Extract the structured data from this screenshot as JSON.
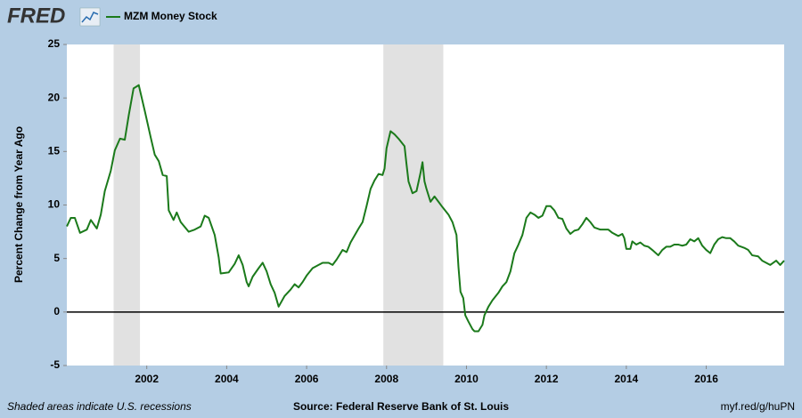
{
  "brand": "FRED",
  "chart_data": {
    "type": "line",
    "y_label": "Percent Change from Year Ago",
    "recession_note": "Shaded areas indicate U.S. recessions",
    "source": "Source: Federal Reserve Bank of St. Louis",
    "link": "myf.red/g/huPN",
    "xlim": [
      2000,
      2017.95
    ],
    "xticks": [
      2002,
      2004,
      2006,
      2008,
      2010,
      2012,
      2014,
      2016
    ],
    "ylim": [
      -5,
      25
    ],
    "yticks": [
      -5,
      0,
      5,
      10,
      15,
      20,
      25
    ],
    "grid": false,
    "recession_color": "#e1e1e1",
    "recessions": [
      [
        2001.17,
        2001.83
      ],
      [
        2007.92,
        2009.42
      ]
    ],
    "x": [
      2000.0,
      2000.1,
      2000.2,
      2000.33,
      2000.5,
      2000.6,
      2000.75,
      2000.85,
      2000.95,
      2001.1,
      2001.2,
      2001.33,
      2001.45,
      2001.55,
      2001.67,
      2001.8,
      2001.95,
      2002.1,
      2002.2,
      2002.3,
      2002.4,
      2002.5,
      2002.55,
      2002.67,
      2002.75,
      2002.85,
      2003.05,
      2003.2,
      2003.35,
      2003.45,
      2003.55,
      2003.7,
      2003.8,
      2003.85,
      2004.05,
      2004.2,
      2004.3,
      2004.4,
      2004.5,
      2004.55,
      2004.65,
      2004.8,
      2004.9,
      2005.0,
      2005.1,
      2005.2,
      2005.3,
      2005.45,
      2005.6,
      2005.7,
      2005.8,
      2005.9,
      2006.0,
      2006.15,
      2006.3,
      2006.4,
      2006.55,
      2006.65,
      2006.75,
      2006.9,
      2007.0,
      2007.1,
      2007.3,
      2007.4,
      2007.5,
      2007.6,
      2007.7,
      2007.8,
      2007.9,
      2007.95,
      2008.0,
      2008.1,
      2008.2,
      2008.3,
      2008.45,
      2008.5,
      2008.55,
      2008.65,
      2008.75,
      2008.85,
      2008.9,
      2008.95,
      2009.0,
      2009.1,
      2009.2,
      2009.3,
      2009.4,
      2009.55,
      2009.65,
      2009.75,
      2009.8,
      2009.85,
      2009.92,
      2009.97,
      2010.05,
      2010.15,
      2010.2,
      2010.3,
      2010.4,
      2010.45,
      2010.55,
      2010.65,
      2010.8,
      2010.9,
      2011.0,
      2011.1,
      2011.2,
      2011.3,
      2011.4,
      2011.5,
      2011.6,
      2011.7,
      2011.8,
      2011.9,
      2012.0,
      2012.1,
      2012.2,
      2012.3,
      2012.4,
      2012.5,
      2012.6,
      2012.7,
      2012.8,
      2012.9,
      2013.0,
      2013.1,
      2013.2,
      2013.35,
      2013.45,
      2013.55,
      2013.65,
      2013.75,
      2013.8,
      2013.9,
      2013.95,
      2014.0,
      2014.1,
      2014.15,
      2014.25,
      2014.35,
      2014.45,
      2014.55,
      2014.65,
      2014.8,
      2014.9,
      2015.0,
      2015.1,
      2015.2,
      2015.3,
      2015.4,
      2015.5,
      2015.6,
      2015.7,
      2015.8,
      2015.9,
      2016.0,
      2016.1,
      2016.2,
      2016.3,
      2016.4,
      2016.5,
      2016.6,
      2016.7,
      2016.8,
      2016.95,
      2017.05,
      2017.15,
      2017.3,
      2017.4,
      2017.5,
      2017.6,
      2017.75,
      2017.85,
      2017.95
    ],
    "series": [
      {
        "name": "MZM Money Stock",
        "color": "#1b7a1b",
        "values": [
          8.0,
          8.8,
          8.8,
          7.4,
          7.7,
          8.6,
          7.8,
          9.1,
          11.3,
          13.2,
          15.1,
          16.2,
          16.1,
          18.4,
          20.9,
          21.2,
          18.8,
          16.3,
          14.7,
          14.1,
          12.8,
          12.7,
          9.5,
          8.6,
          9.3,
          8.4,
          7.5,
          7.7,
          8.0,
          9.0,
          8.8,
          7.2,
          5.1,
          3.6,
          3.7,
          4.5,
          5.3,
          4.4,
          2.8,
          2.4,
          3.3,
          4.1,
          4.6,
          3.8,
          2.6,
          1.8,
          0.5,
          1.5,
          2.1,
          2.6,
          2.3,
          2.8,
          3.4,
          4.1,
          4.4,
          4.6,
          4.6,
          4.4,
          4.9,
          5.8,
          5.6,
          6.5,
          7.8,
          8.4,
          9.9,
          11.5,
          12.3,
          12.9,
          12.8,
          13.4,
          15.3,
          16.9,
          16.6,
          16.2,
          15.5,
          13.8,
          12.2,
          11.1,
          11.3,
          13.0,
          14.0,
          12.2,
          11.5,
          10.3,
          10.8,
          10.3,
          9.8,
          9.1,
          8.4,
          7.2,
          4.2,
          1.9,
          1.3,
          -0.3,
          -0.9,
          -1.6,
          -1.8,
          -1.8,
          -1.2,
          -0.3,
          0.5,
          1.1,
          1.8,
          2.4,
          2.8,
          3.8,
          5.5,
          6.3,
          7.2,
          8.8,
          9.3,
          9.1,
          8.8,
          9.0,
          9.9,
          9.9,
          9.5,
          8.8,
          8.7,
          7.8,
          7.3,
          7.6,
          7.7,
          8.2,
          8.8,
          8.4,
          7.9,
          7.7,
          7.7,
          7.7,
          7.4,
          7.2,
          7.1,
          7.3,
          6.9,
          5.9,
          5.9,
          6.6,
          6.3,
          6.5,
          6.2,
          6.1,
          5.8,
          5.3,
          5.8,
          6.1,
          6.1,
          6.3,
          6.3,
          6.2,
          6.3,
          6.8,
          6.6,
          6.9,
          6.2,
          5.8,
          5.5,
          6.3,
          6.8,
          7.0,
          6.9,
          6.9,
          6.6,
          6.2,
          6.0,
          5.8,
          5.3,
          5.2,
          4.8,
          4.6,
          4.4,
          4.8,
          4.4,
          4.8
        ]
      }
    ]
  }
}
